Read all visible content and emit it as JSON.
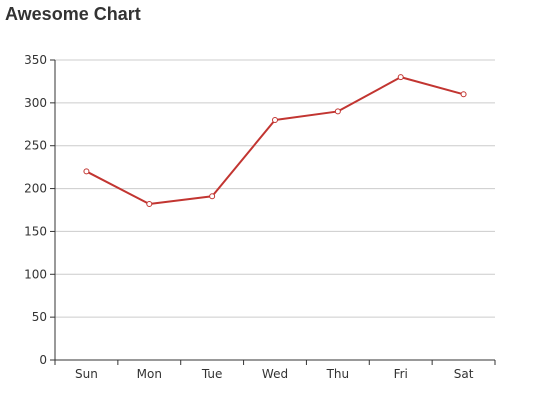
{
  "chart_data": {
    "type": "line",
    "title": "Awesome Chart",
    "categories": [
      "Sun",
      "Mon",
      "Tue",
      "Wed",
      "Thu",
      "Fri",
      "Sat"
    ],
    "series": [
      {
        "values": [
          220,
          182,
          191,
          280,
          290,
          330,
          310
        ]
      }
    ],
    "ylim": [
      0,
      350
    ],
    "yticks": [
      "0",
      "50",
      "100",
      "150",
      "200",
      "250",
      "300",
      "350"
    ],
    "grid": true,
    "line_color": "#c23531",
    "grid_color": "#cccccc",
    "axis_color": "#333333"
  }
}
